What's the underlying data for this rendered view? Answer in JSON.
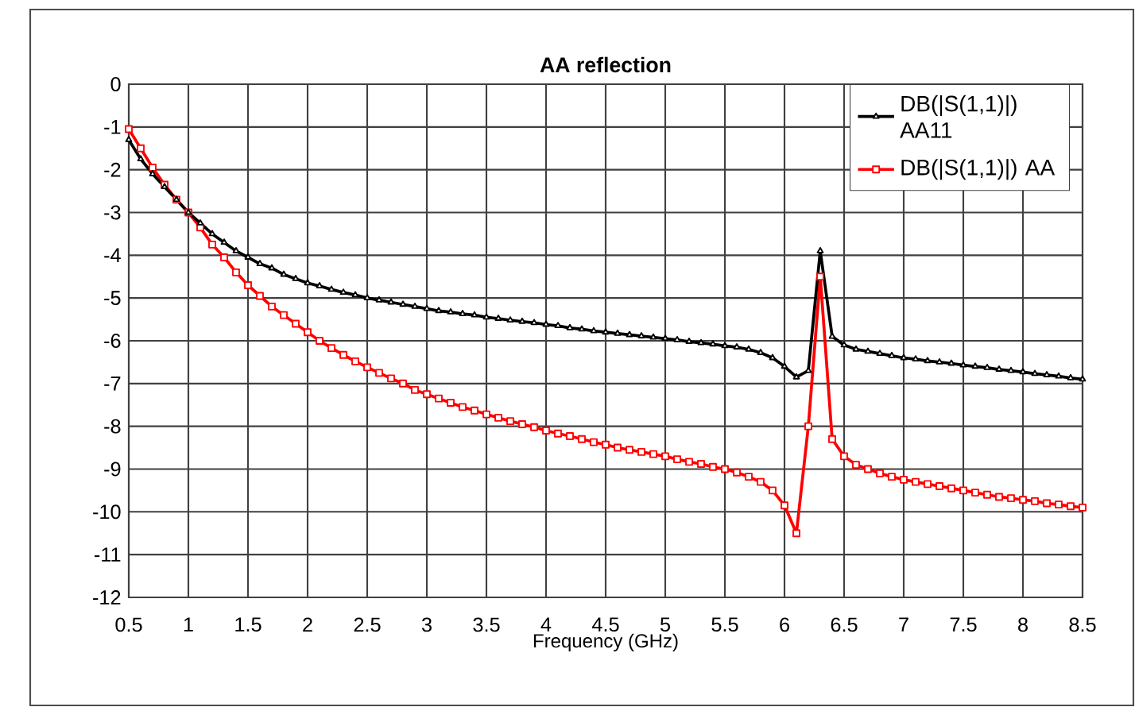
{
  "chart_data": {
    "type": "line",
    "title": "AA reflection",
    "xlabel": "Frequency (GHz)",
    "x": [
      0.5,
      0.6,
      0.7,
      0.8,
      0.9,
      1.0,
      1.1,
      1.2,
      1.3,
      1.4,
      1.5,
      1.6,
      1.7,
      1.8,
      1.9,
      2.0,
      2.1,
      2.2,
      2.3,
      2.4,
      2.5,
      2.6,
      2.7,
      2.8,
      2.9,
      3.0,
      3.1,
      3.2,
      3.3,
      3.4,
      3.5,
      3.6,
      3.7,
      3.8,
      3.9,
      4.0,
      4.1,
      4.2,
      4.3,
      4.4,
      4.5,
      4.6,
      4.7,
      4.8,
      4.9,
      5.0,
      5.1,
      5.2,
      5.3,
      5.4,
      5.5,
      5.6,
      5.7,
      5.8,
      5.9,
      6.0,
      6.1,
      6.2,
      6.3,
      6.4,
      6.5,
      6.6,
      6.7,
      6.8,
      6.9,
      7.0,
      7.1,
      7.2,
      7.3,
      7.4,
      7.5,
      7.6,
      7.7,
      7.8,
      7.9,
      8.0,
      8.1,
      8.2,
      8.3,
      8.4,
      8.5
    ],
    "series": [
      {
        "name": "DB(|S(1,1)|) AA11",
        "color": "#000000",
        "marker": "triangle",
        "values": [
          -1.3,
          -1.75,
          -2.1,
          -2.4,
          -2.7,
          -3.0,
          -3.25,
          -3.5,
          -3.7,
          -3.9,
          -4.05,
          -4.2,
          -4.3,
          -4.45,
          -4.55,
          -4.65,
          -4.72,
          -4.8,
          -4.87,
          -4.93,
          -5.0,
          -5.05,
          -5.1,
          -5.15,
          -5.2,
          -5.25,
          -5.3,
          -5.33,
          -5.37,
          -5.4,
          -5.45,
          -5.48,
          -5.52,
          -5.55,
          -5.58,
          -5.62,
          -5.65,
          -5.7,
          -5.73,
          -5.77,
          -5.8,
          -5.83,
          -5.86,
          -5.89,
          -5.92,
          -5.95,
          -5.98,
          -6.02,
          -6.05,
          -6.08,
          -6.12,
          -6.15,
          -6.2,
          -6.28,
          -6.4,
          -6.6,
          -6.85,
          -6.7,
          -3.9,
          -5.9,
          -6.1,
          -6.2,
          -6.25,
          -6.3,
          -6.35,
          -6.4,
          -6.43,
          -6.47,
          -6.5,
          -6.53,
          -6.57,
          -6.6,
          -6.63,
          -6.67,
          -6.7,
          -6.73,
          -6.77,
          -6.8,
          -6.83,
          -6.87,
          -6.9
        ]
      },
      {
        "name": "DB(|S(1,1)|) AA",
        "color": "#ff0000",
        "marker": "square",
        "values": [
          -1.05,
          -1.5,
          -1.95,
          -2.35,
          -2.7,
          -3.0,
          -3.35,
          -3.75,
          -4.05,
          -4.4,
          -4.7,
          -4.95,
          -5.2,
          -5.4,
          -5.6,
          -5.8,
          -6.0,
          -6.17,
          -6.33,
          -6.48,
          -6.62,
          -6.75,
          -6.88,
          -7.0,
          -7.15,
          -7.25,
          -7.35,
          -7.45,
          -7.55,
          -7.63,
          -7.72,
          -7.8,
          -7.88,
          -7.95,
          -8.02,
          -8.1,
          -8.17,
          -8.23,
          -8.3,
          -8.37,
          -8.43,
          -8.5,
          -8.55,
          -8.6,
          -8.65,
          -8.7,
          -8.77,
          -8.83,
          -8.88,
          -8.95,
          -9.0,
          -9.08,
          -9.18,
          -9.3,
          -9.5,
          -9.85,
          -10.5,
          -8.0,
          -4.5,
          -8.3,
          -8.7,
          -8.9,
          -9.0,
          -9.1,
          -9.18,
          -9.25,
          -9.3,
          -9.35,
          -9.4,
          -9.45,
          -9.5,
          -9.55,
          -9.6,
          -9.65,
          -9.68,
          -9.72,
          -9.75,
          -9.8,
          -9.83,
          -9.87,
          -9.9
        ]
      }
    ],
    "xlim": [
      0.5,
      8.5
    ],
    "xticks": [
      0.5,
      1,
      1.5,
      2,
      2.5,
      3,
      3.5,
      4,
      4.5,
      5,
      5.5,
      6,
      6.5,
      7,
      7.5,
      8,
      8.5
    ],
    "ylim": [
      -12,
      0
    ],
    "yticks": [
      -12,
      -11,
      -10,
      -9,
      -8,
      -7,
      -6,
      -5,
      -4,
      -3,
      -2,
      -1,
      0
    ],
    "grid": true,
    "legend": "top right",
    "line_style": "solid"
  }
}
